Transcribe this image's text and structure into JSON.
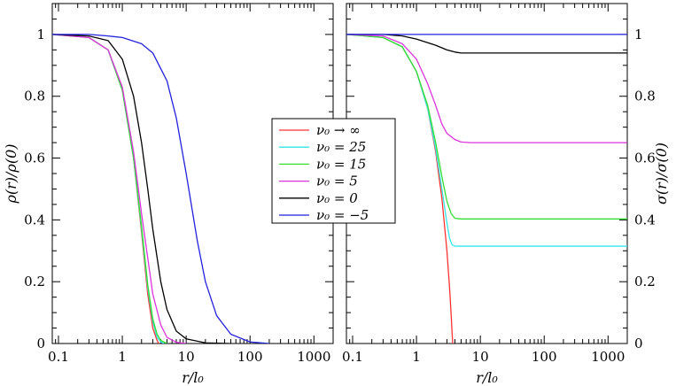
{
  "chart_data": [
    {
      "type": "line",
      "panel": "left",
      "xlabel": "r/l₀",
      "ylabel": "ρ(r)/ρ(0)",
      "xscale": "log",
      "xlim": [
        0.08,
        2000
      ],
      "ylim": [
        0,
        1.1
      ],
      "xticks": [
        0.1,
        1,
        10,
        100,
        1000
      ],
      "xtick_labels": [
        "0.1",
        "1",
        "10",
        "100",
        "1000"
      ],
      "yticks": [
        0,
        0.2,
        0.4,
        0.6,
        0.8,
        1
      ],
      "ytick_labels": [
        "0",
        "0.2",
        "0.4",
        "0.6",
        "0.8",
        "1"
      ],
      "grid": false,
      "series": [
        {
          "name": "ν₀ → ∞",
          "color": "#ff3333",
          "x": [
            0.08,
            0.3,
            0.6,
            1.0,
            1.5,
            2.0,
            2.5,
            3.0,
            3.5,
            3.7
          ],
          "y": [
            1.0,
            0.99,
            0.95,
            0.82,
            0.6,
            0.36,
            0.16,
            0.05,
            0.01,
            0.0
          ]
        },
        {
          "name": "ν₀ = 25",
          "color": "#33e5e5",
          "x": [
            0.08,
            0.3,
            0.6,
            1.0,
            1.5,
            2.0,
            2.5,
            3.0,
            3.5,
            4.0,
            4.5
          ],
          "y": [
            1.0,
            0.99,
            0.95,
            0.82,
            0.6,
            0.37,
            0.18,
            0.07,
            0.02,
            0.005,
            0.0
          ]
        },
        {
          "name": "ν₀ = 15",
          "color": "#33dd33",
          "x": [
            0.08,
            0.3,
            0.6,
            1.0,
            1.5,
            2.0,
            2.5,
            3.0,
            3.5,
            4.0,
            5.0
          ],
          "y": [
            1.0,
            0.99,
            0.95,
            0.82,
            0.6,
            0.38,
            0.19,
            0.08,
            0.03,
            0.01,
            0.0
          ]
        },
        {
          "name": "ν₀ = 5",
          "color": "#dd33dd",
          "x": [
            0.08,
            0.3,
            0.6,
            1.0,
            1.5,
            2.0,
            3.0,
            4.0,
            5.0,
            7.0,
            10.0
          ],
          "y": [
            1.0,
            0.99,
            0.95,
            0.83,
            0.62,
            0.42,
            0.16,
            0.06,
            0.02,
            0.004,
            0.0
          ]
        },
        {
          "name": "ν₀ = 0",
          "color": "#000000",
          "x": [
            0.08,
            0.3,
            0.6,
            1.0,
            1.5,
            2.0,
            2.5,
            3.0,
            4.0,
            5.0,
            7.0,
            10.0,
            20.0,
            50.0
          ],
          "y": [
            1.0,
            0.995,
            0.98,
            0.92,
            0.8,
            0.65,
            0.5,
            0.37,
            0.2,
            0.11,
            0.04,
            0.015,
            0.002,
            0.0
          ]
        },
        {
          "name": "ν₀ = −5",
          "color": "#2222dd",
          "x": [
            0.08,
            0.3,
            0.6,
            1.0,
            2.0,
            3.0,
            5.0,
            7.0,
            10.0,
            15.0,
            20.0,
            30.0,
            50.0,
            100.0,
            200.0
          ],
          "y": [
            1.0,
            1.0,
            0.995,
            0.99,
            0.97,
            0.94,
            0.85,
            0.73,
            0.55,
            0.33,
            0.2,
            0.09,
            0.03,
            0.005,
            0.0
          ]
        }
      ]
    },
    {
      "type": "line",
      "panel": "right",
      "xlabel": "r/l₀",
      "ylabel": "σ(r)/σ(0)",
      "xscale": "log",
      "xlim": [
        0.08,
        2000
      ],
      "ylim": [
        0,
        1.1
      ],
      "xticks": [
        0.1,
        1,
        10,
        100,
        1000
      ],
      "xtick_labels": [
        "0.1",
        "1",
        "10",
        "100",
        "1000"
      ],
      "yticks": [
        0,
        0.2,
        0.4,
        0.6,
        0.8,
        1
      ],
      "ytick_labels": [
        "0",
        "0.2",
        "0.4",
        "0.6",
        "0.8",
        "1"
      ],
      "grid": false,
      "legend_position": "center-left",
      "series": [
        {
          "name": "ν₀ → ∞",
          "color": "#ff3333",
          "x": [
            0.08,
            0.3,
            0.6,
            1.0,
            1.5,
            2.0,
            2.5,
            3.0,
            3.3,
            3.5,
            3.6,
            3.7
          ],
          "y": [
            1.0,
            0.99,
            0.96,
            0.88,
            0.76,
            0.62,
            0.47,
            0.3,
            0.18,
            0.09,
            0.04,
            0.0
          ]
        },
        {
          "name": "ν₀ = 25",
          "color": "#33e5e5",
          "x": [
            0.08,
            0.3,
            0.6,
            1.0,
            1.5,
            2.0,
            2.5,
            3.0,
            3.3,
            3.6,
            4.0,
            5.0,
            10.0,
            2000.0
          ],
          "y": [
            1.0,
            0.99,
            0.96,
            0.88,
            0.76,
            0.63,
            0.5,
            0.39,
            0.34,
            0.32,
            0.315,
            0.315,
            0.315,
            0.315
          ]
        },
        {
          "name": "ν₀ = 15",
          "color": "#33dd33",
          "x": [
            0.08,
            0.3,
            0.6,
            1.0,
            1.5,
            2.0,
            2.5,
            3.0,
            3.5,
            4.0,
            5.0,
            10.0,
            2000.0
          ],
          "y": [
            1.0,
            0.99,
            0.96,
            0.88,
            0.77,
            0.65,
            0.54,
            0.46,
            0.42,
            0.405,
            0.403,
            0.403,
            0.403
          ]
        },
        {
          "name": "ν₀ = 5",
          "color": "#dd33dd",
          "x": [
            0.08,
            0.3,
            0.6,
            1.0,
            1.5,
            2.0,
            2.5,
            3.0,
            4.0,
            5.0,
            7.0,
            10.0,
            2000.0
          ],
          "y": [
            1.0,
            0.995,
            0.97,
            0.92,
            0.84,
            0.77,
            0.71,
            0.68,
            0.66,
            0.652,
            0.65,
            0.65,
            0.65
          ]
        },
        {
          "name": "ν₀ = 0",
          "color": "#000000",
          "x": [
            0.08,
            0.3,
            0.6,
            1.0,
            2.0,
            3.0,
            4.0,
            5.0,
            7.0,
            10.0,
            2000.0
          ],
          "y": [
            1.0,
            1.0,
            0.995,
            0.985,
            0.965,
            0.95,
            0.943,
            0.94,
            0.94,
            0.94,
            0.94
          ]
        },
        {
          "name": "ν₀ = −5",
          "color": "#2222dd",
          "x": [
            0.08,
            2000.0
          ],
          "y": [
            1.0,
            1.0
          ]
        }
      ]
    }
  ],
  "legend": {
    "entries": [
      "ν₀ → ∞",
      "ν₀ = 25",
      "ν₀ = 15",
      "ν₀ = 5",
      "ν₀ = 0",
      "ν₀ = −5"
    ]
  }
}
